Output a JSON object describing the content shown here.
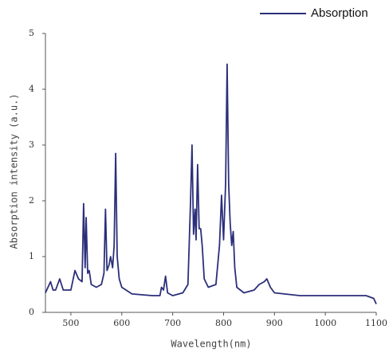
{
  "chart_data": {
    "type": "line",
    "x_label": "Wavelength(nm)",
    "y_label": "Absorption intensity (a.u.)",
    "x": [
      450,
      455,
      460,
      465,
      470,
      478,
      485,
      500,
      508,
      515,
      522,
      525,
      528,
      530,
      533,
      536,
      540,
      550,
      560,
      565,
      568,
      571,
      575,
      578,
      582,
      585,
      588,
      591,
      595,
      600,
      620,
      660,
      675,
      678,
      682,
      686,
      690,
      700,
      720,
      730,
      735,
      738,
      741,
      744,
      746,
      749,
      752,
      755,
      758,
      762,
      770,
      785,
      792,
      796,
      800,
      804,
      807,
      810,
      813,
      816,
      819,
      822,
      826,
      840,
      860,
      870,
      880,
      885,
      892,
      900,
      950,
      1000,
      1050,
      1080,
      1095,
      1100
    ],
    "series": [
      {
        "name": "Absorption",
        "color": "#2b2f7a",
        "values": [
          0.35,
          0.45,
          0.55,
          0.4,
          0.4,
          0.6,
          0.4,
          0.4,
          0.75,
          0.6,
          0.55,
          1.95,
          0.8,
          1.7,
          0.7,
          0.75,
          0.5,
          0.45,
          0.5,
          0.7,
          1.85,
          0.75,
          0.85,
          1.0,
          0.8,
          1.2,
          2.85,
          1.0,
          0.6,
          0.45,
          0.33,
          0.3,
          0.3,
          0.45,
          0.4,
          0.65,
          0.35,
          0.3,
          0.35,
          0.5,
          1.95,
          3.0,
          1.4,
          1.85,
          1.3,
          2.65,
          1.5,
          1.5,
          1.2,
          0.6,
          0.45,
          0.5,
          1.2,
          2.1,
          1.3,
          2.3,
          4.45,
          2.3,
          1.6,
          1.2,
          1.45,
          0.8,
          0.45,
          0.35,
          0.4,
          0.5,
          0.55,
          0.6,
          0.45,
          0.35,
          0.3,
          0.3,
          0.3,
          0.3,
          0.25,
          0.15
        ]
      }
    ],
    "xlim": [
      450,
      1100
    ],
    "xticks": [
      500,
      600,
      700,
      800,
      900,
      1000,
      1100
    ],
    "ylim": [
      0,
      5
    ],
    "yticks": [
      0,
      1,
      2,
      3,
      4,
      5
    ],
    "legend": "top-right"
  }
}
